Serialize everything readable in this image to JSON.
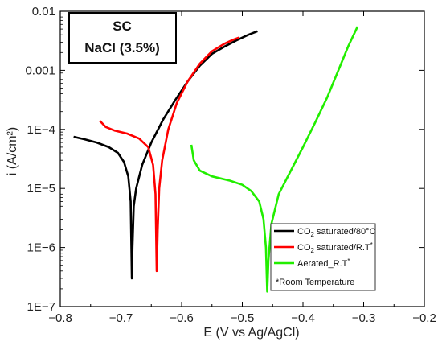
{
  "chart_data": {
    "type": "line",
    "xlabel": "E (V vs Ag/AgCl)",
    "ylabel": "i (A/cm²)",
    "xlim": [
      -0.8,
      -0.2
    ],
    "ylim": [
      1e-07,
      0.01
    ],
    "yscale": "log",
    "x_ticks": [
      -0.8,
      -0.7,
      -0.6,
      -0.5,
      -0.4,
      -0.3,
      -0.2
    ],
    "x_tick_labels": [
      "−0.8",
      "−0.7",
      "−0.6",
      "−0.5",
      "−0.4",
      "−0.3",
      "−0.2"
    ],
    "y_ticks": [
      1e-07,
      1e-06,
      1e-05,
      0.0001,
      0.001,
      0.01
    ],
    "y_tick_labels": [
      "1E−7",
      "1E−6",
      "1E−5",
      "1E−4",
      "0.001",
      "0.01"
    ],
    "annotation": {
      "line1": "SC",
      "line2": "NaCl (3.5%)"
    },
    "legend_position": "bottom-right",
    "legend_note": "*Room Temperature",
    "series": [
      {
        "legend_main": "CO",
        "legend_sub": "2",
        "legend_rest": " saturated/80°C",
        "color": "#000000",
        "points": [
          [
            -0.778,
            7.5e-05
          ],
          [
            -0.76,
            6.8e-05
          ],
          [
            -0.74,
            6e-05
          ],
          [
            -0.72,
            5e-05
          ],
          [
            -0.705,
            4e-05
          ],
          [
            -0.695,
            2.8e-05
          ],
          [
            -0.688,
            1.6e-05
          ],
          [
            -0.684,
            6e-06
          ],
          [
            -0.682,
            3e-07
          ],
          [
            -0.681,
            1e-06
          ],
          [
            -0.679,
            5e-06
          ],
          [
            -0.675,
            1e-05
          ],
          [
            -0.665,
            2.5e-05
          ],
          [
            -0.65,
            6e-05
          ],
          [
            -0.63,
            0.00015
          ],
          [
            -0.61,
            0.00032
          ],
          [
            -0.59,
            0.00065
          ],
          [
            -0.57,
            0.0012
          ],
          [
            -0.55,
            0.0019
          ],
          [
            -0.53,
            0.0025
          ],
          [
            -0.51,
            0.0032
          ],
          [
            -0.49,
            0.004
          ],
          [
            -0.475,
            0.0046
          ]
        ]
      },
      {
        "legend_main": "CO",
        "legend_sub": "2",
        "legend_rest": " saturated/R.T",
        "color": "#ff0000",
        "points": [
          [
            -0.735,
            0.00014
          ],
          [
            -0.725,
            0.00011
          ],
          [
            -0.71,
            9.5e-05
          ],
          [
            -0.69,
            8.5e-05
          ],
          [
            -0.67,
            7e-05
          ],
          [
            -0.655,
            5e-05
          ],
          [
            -0.647,
            2.5e-05
          ],
          [
            -0.643,
            8e-06
          ],
          [
            -0.641,
            4e-07
          ],
          [
            -0.6395,
            2e-06
          ],
          [
            -0.637,
            1e-05
          ],
          [
            -0.632,
            3e-05
          ],
          [
            -0.622,
            0.0001
          ],
          [
            -0.608,
            0.00028
          ],
          [
            -0.59,
            0.00065
          ],
          [
            -0.57,
            0.0013
          ],
          [
            -0.55,
            0.0021
          ],
          [
            -0.53,
            0.0028
          ],
          [
            -0.515,
            0.0033
          ],
          [
            -0.505,
            0.0036
          ]
        ]
      },
      {
        "legend_main": "Aerated_R.T",
        "legend_sub": "",
        "legend_rest": "",
        "color": "#22ee00",
        "points": [
          [
            -0.584,
            5.5e-05
          ],
          [
            -0.58,
            3e-05
          ],
          [
            -0.57,
            2e-05
          ],
          [
            -0.55,
            1.6e-05
          ],
          [
            -0.52,
            1.35e-05
          ],
          [
            -0.5,
            1.15e-05
          ],
          [
            -0.485,
            9e-06
          ],
          [
            -0.472,
            6e-06
          ],
          [
            -0.465,
            3e-06
          ],
          [
            -0.461,
            1e-06
          ],
          [
            -0.459,
            1.8e-07
          ],
          [
            -0.457,
            6e-07
          ],
          [
            -0.452,
            2.5e-06
          ],
          [
            -0.44,
            8e-06
          ],
          [
            -0.42,
            2e-05
          ],
          [
            -0.4,
            5e-05
          ],
          [
            -0.38,
            0.00013
          ],
          [
            -0.36,
            0.00035
          ],
          [
            -0.34,
            0.0011
          ],
          [
            -0.325,
            0.0026
          ],
          [
            -0.31,
            0.0055
          ]
        ]
      }
    ]
  }
}
